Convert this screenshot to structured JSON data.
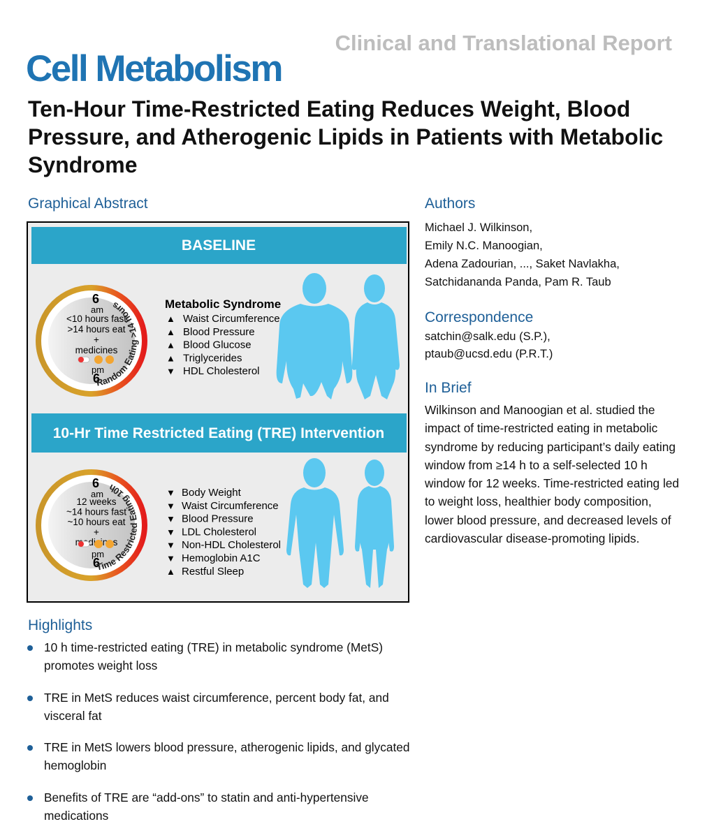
{
  "header": {
    "journal": "Cell Metabolism",
    "report_type": "Clinical and Translational Report",
    "title": "Ten-Hour Time-Restricted Eating Reduces Weight, Blood Pressure, and Atherogenic Lipids in Patients with Metabolic Syndrome"
  },
  "graphical_abstract": {
    "heading": "Graphical Abstract",
    "baseline": {
      "banner": "BASELINE",
      "clock": {
        "top": "6",
        "top_period": "am",
        "lines": [
          "<10 hours fast",
          ">14 hours eat",
          "+",
          "medicines"
        ],
        "bottom_period": "pm",
        "bottom": "6",
        "arc": "Random Eating >14 hours"
      },
      "list_heading": "Metabolic Syndrome",
      "items": [
        {
          "arrow": "▲",
          "label": "Waist Circumference"
        },
        {
          "arrow": "▲",
          "label": "Blood Pressure"
        },
        {
          "arrow": "▲",
          "label": "Blood Glucose"
        },
        {
          "arrow": "▲",
          "label": "Triglycerides"
        },
        {
          "arrow": "▼",
          "label": "HDL Cholesterol"
        }
      ]
    },
    "intervention": {
      "banner": "10-Hr Time Restricted Eating (TRE) Intervention",
      "clock": {
        "top": "6",
        "top_period": "am",
        "lines": [
          "12 weeks",
          "~14 hours fast",
          "~10 hours eat",
          "+",
          "medicines"
        ],
        "bottom_period": "pm",
        "bottom": "6",
        "arc": "Time Restricted Eating 10h"
      },
      "items": [
        {
          "arrow": "▼",
          "label": "Body Weight"
        },
        {
          "arrow": "▼",
          "label": "Waist Circumference"
        },
        {
          "arrow": "▼",
          "label": "Blood Pressure"
        },
        {
          "arrow": "▼",
          "label": "LDL Cholesterol"
        },
        {
          "arrow": "▼",
          "label": "Non-HDL Cholesterol"
        },
        {
          "arrow": "▼",
          "label": "Hemoglobin A1C"
        },
        {
          "arrow": "▲",
          "label": "Restful Sleep"
        }
      ]
    }
  },
  "highlights": {
    "heading": "Highlights",
    "items": [
      "10 h time-restricted eating (TRE) in metabolic syndrome (MetS) promotes weight loss",
      "TRE in MetS reduces waist circumference, percent body fat, and visceral fat",
      "TRE in MetS lowers blood pressure, atherogenic lipids, and glycated hemoglobin",
      "Benefits of TRE are “add-ons” to statin and anti-hypertensive medications"
    ]
  },
  "authors": {
    "heading": "Authors",
    "lines": [
      "Michael J. Wilkinson,",
      "Emily N.C. Manoogian,",
      "Adena Zadourian, ..., Saket Navlakha,",
      "Satchidananda Panda, Pam R. Taub"
    ]
  },
  "correspondence": {
    "heading": "Correspondence",
    "lines": [
      "satchin@salk.edu (S.P.),",
      "ptaub@ucsd.edu (P.R.T.)"
    ]
  },
  "in_brief": {
    "heading": "In Brief",
    "text": "Wilkinson and Manoogian et al. studied the impact of time-restricted eating in metabolic syndrome by reducing participant’s daily eating window from ≥14 h to a self-selected 10 h window for 12 weeks. Time-restricted eating led to weight loss, healthier body composition, lower blood pressure, and decreased levels of cardiovascular disease-promoting lipids."
  }
}
